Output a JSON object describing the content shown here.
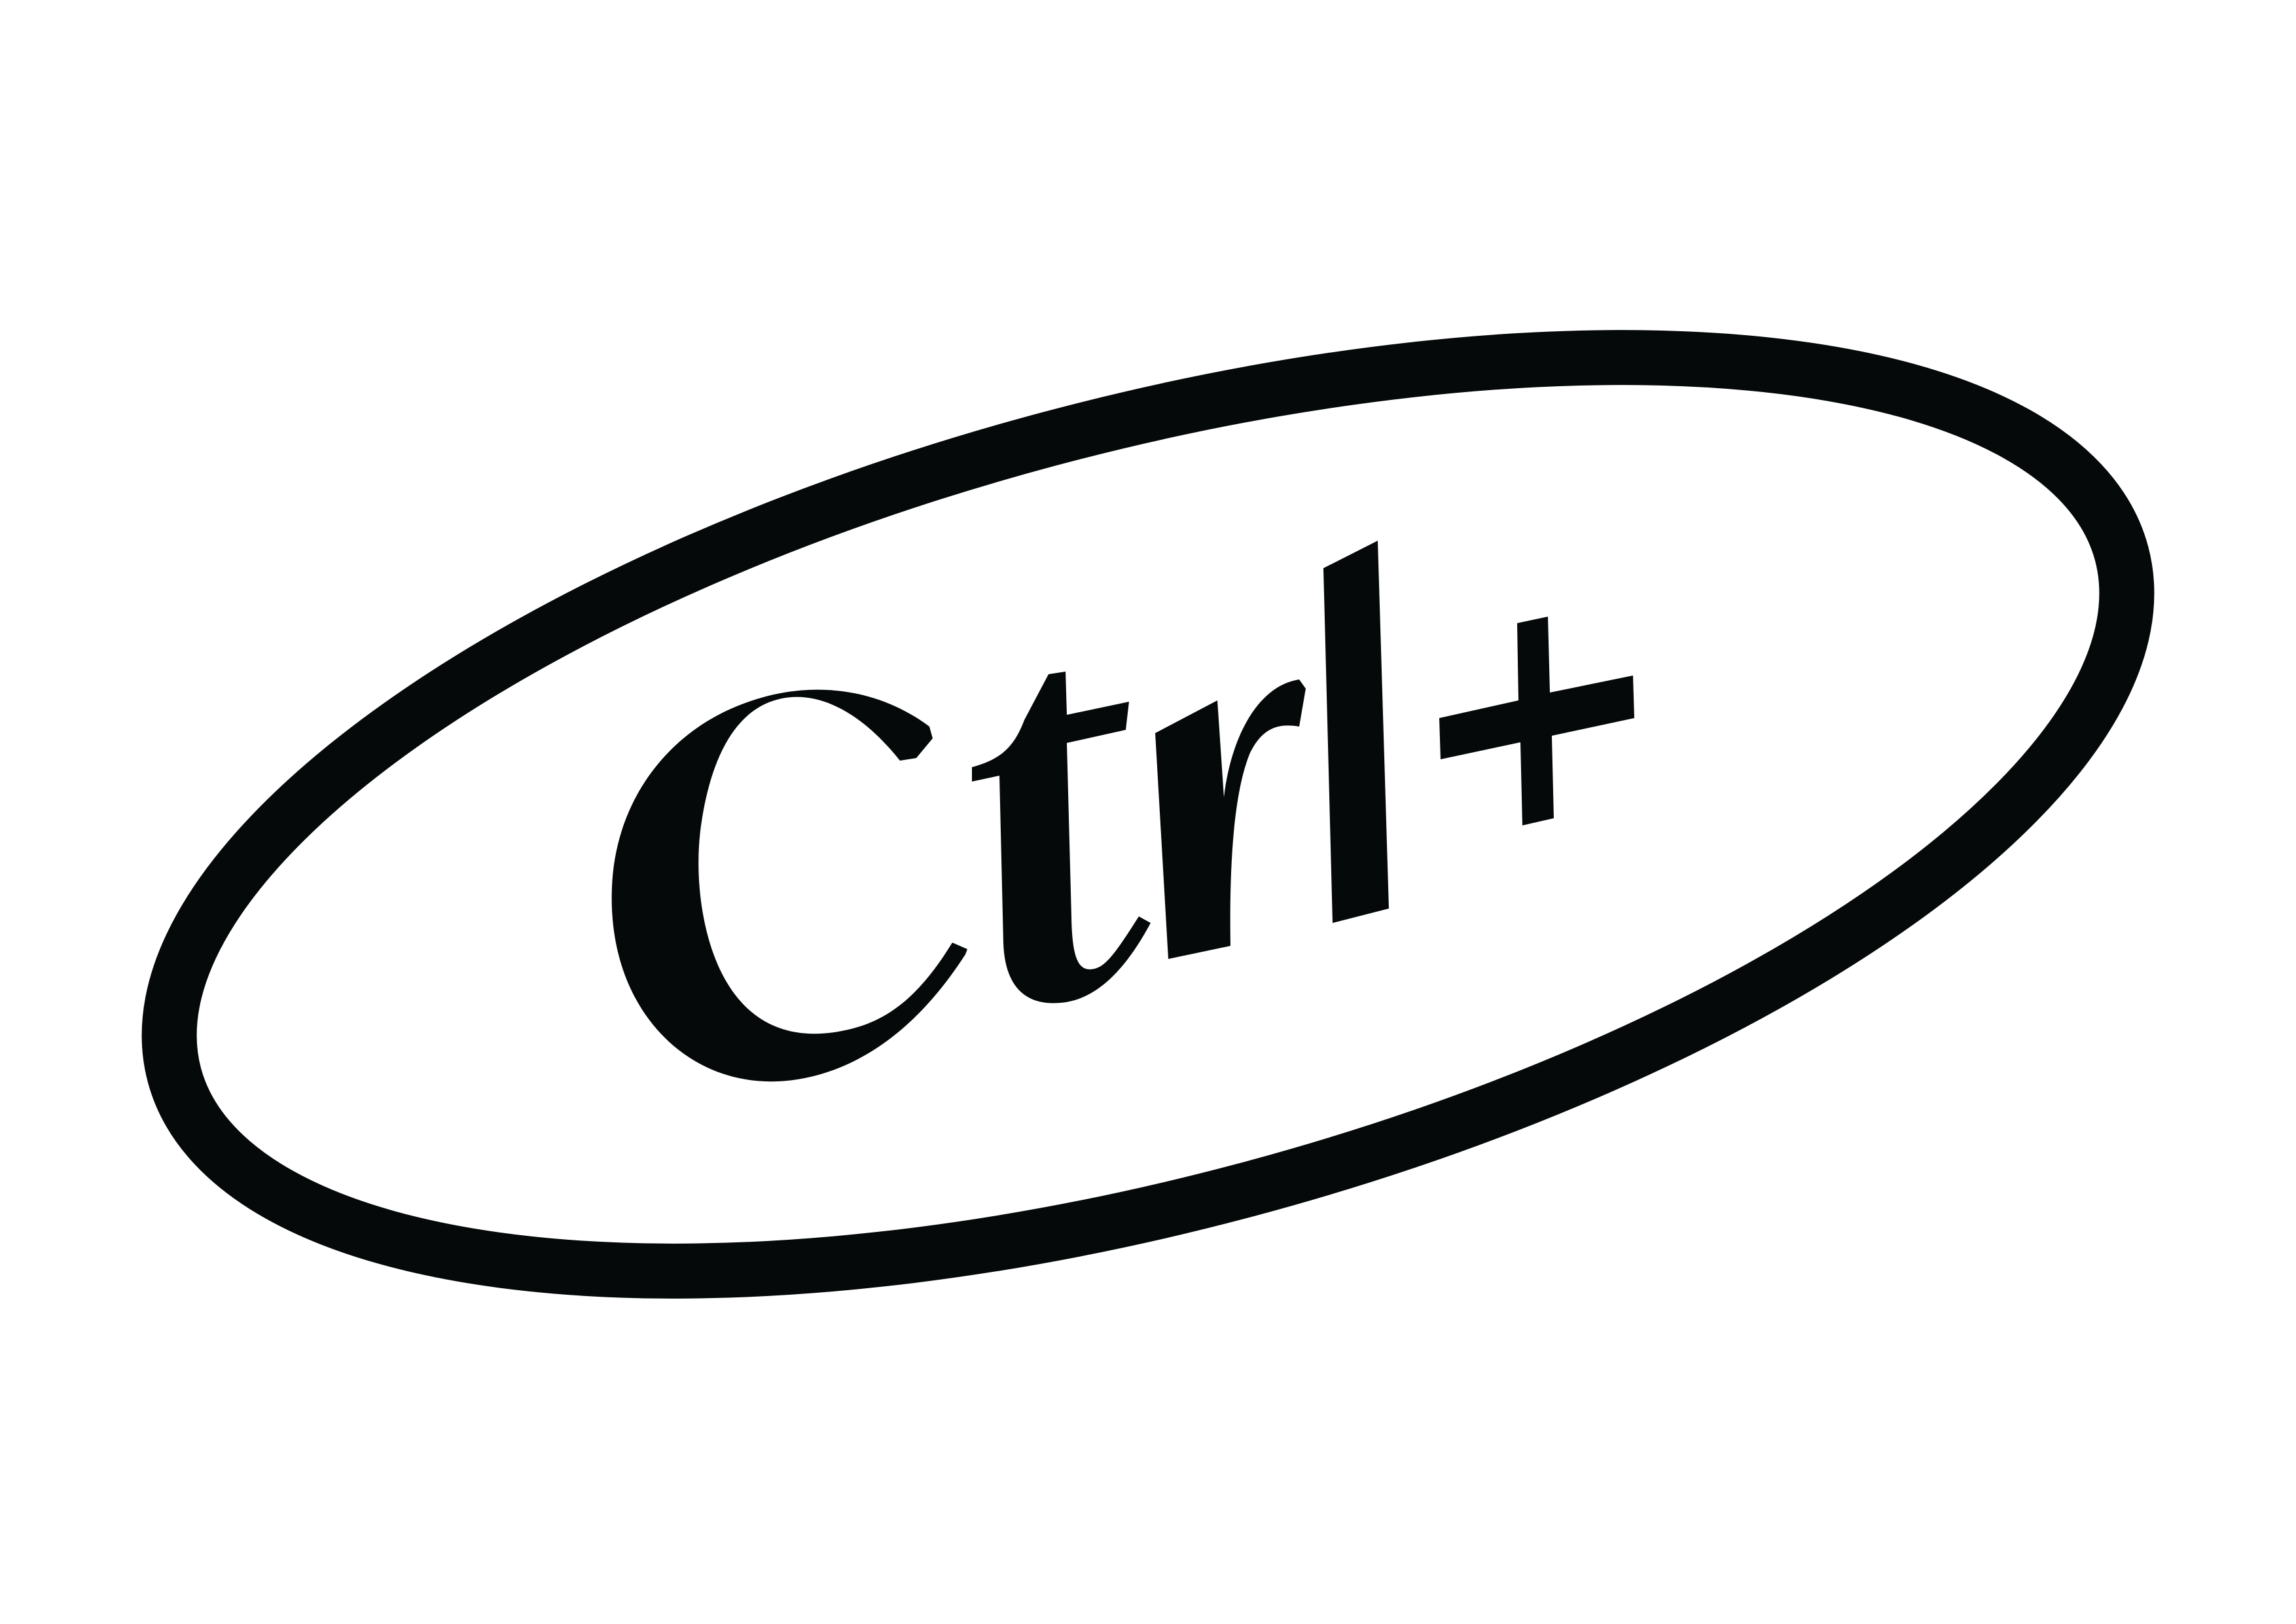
{
  "logo": {
    "wordmark": "ctrl+",
    "ink_color": "#050909",
    "background_color": "#ffffff"
  }
}
